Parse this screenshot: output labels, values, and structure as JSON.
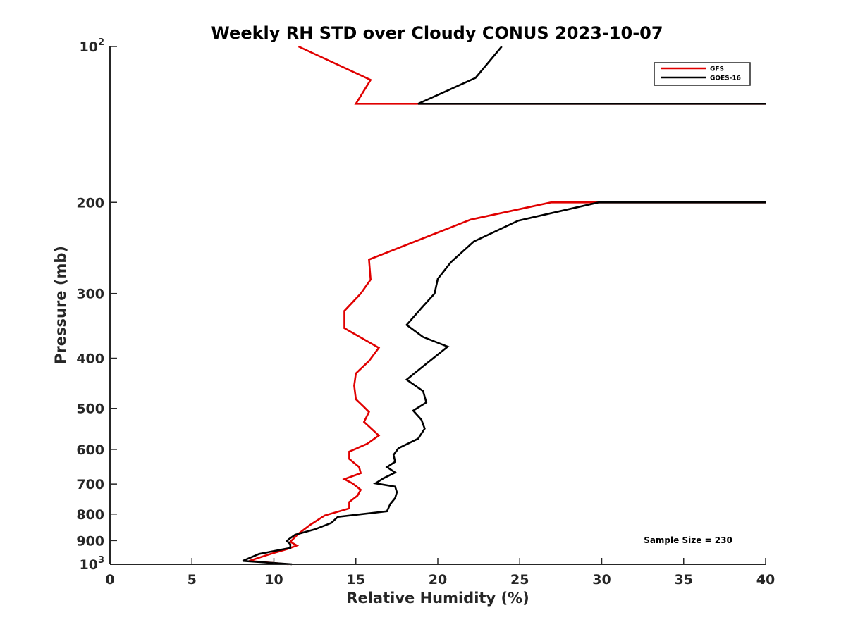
{
  "chart_data": {
    "type": "line",
    "title": "Weekly RH STD over Cloudy CONUS 2023-10-07",
    "xlabel": "Relative Humidity (%)",
    "ylabel": "Pressure (mb)",
    "xlim": [
      0,
      40
    ],
    "ylim": [
      100,
      1000
    ],
    "y_scale": "log",
    "y_reversed": true,
    "x_ticks": [
      0,
      5,
      10,
      15,
      20,
      25,
      30,
      35,
      40
    ],
    "y_ticks": [
      {
        "value": 100,
        "base": "10",
        "exp": "2"
      },
      {
        "value": 200,
        "label": "200"
      },
      {
        "value": 300,
        "label": "300"
      },
      {
        "value": 400,
        "label": "400"
      },
      {
        "value": 500,
        "label": "500"
      },
      {
        "value": 600,
        "label": "600"
      },
      {
        "value": 700,
        "label": "700"
      },
      {
        "value": 800,
        "label": "800"
      },
      {
        "value": 900,
        "label": "900"
      },
      {
        "value": 1000,
        "base": "10",
        "exp": "3"
      }
    ],
    "grid": false,
    "legend_position": "top-right",
    "annotation": "Sample Size = 230",
    "series": [
      {
        "name": "GFS",
        "color": "#e00000",
        "segments": [
          [
            [
              11.5,
              100
            ],
            [
              15.9,
              116
            ],
            [
              15.0,
              129
            ],
            [
              40,
              129
            ]
          ],
          [
            [
              40,
              200
            ],
            [
              26.9,
              200
            ],
            [
              22.0,
              216
            ],
            [
              15.8,
              258
            ],
            [
              15.9,
              282
            ],
            [
              15.3,
              300
            ],
            [
              14.3,
              324
            ],
            [
              14.3,
              350
            ],
            [
              16.4,
              382
            ],
            [
              15.8,
              405
            ],
            [
              15.0,
              428
            ],
            [
              14.9,
              452
            ],
            [
              15.0,
              480
            ],
            [
              15.5,
              497
            ],
            [
              15.8,
              508
            ],
            [
              15.5,
              531
            ],
            [
              16.4,
              564
            ],
            [
              15.7,
              585
            ],
            [
              14.6,
              606
            ],
            [
              14.6,
              626
            ],
            [
              15.2,
              649
            ],
            [
              15.3,
              667
            ],
            [
              14.3,
              685
            ],
            [
              14.8,
              698
            ],
            [
              15.3,
              718
            ],
            [
              15.1,
              737
            ],
            [
              14.6,
              758
            ],
            [
              14.6,
              780
            ],
            [
              13.1,
              805
            ],
            [
              12.2,
              840
            ],
            [
              11.5,
              873
            ],
            [
              11.0,
              905
            ],
            [
              11.4,
              920
            ],
            [
              10.8,
              935
            ],
            [
              9.8,
              955
            ],
            [
              8.5,
              985
            ],
            [
              10.9,
              1000
            ]
          ]
        ]
      },
      {
        "name": "GOES-16",
        "color": "#000000",
        "segments": [
          [
            [
              23.9,
              100
            ],
            [
              22.3,
              115
            ],
            [
              18.8,
              129
            ],
            [
              40,
              129
            ]
          ],
          [
            [
              40,
              200
            ],
            [
              29.8,
              200
            ],
            [
              24.9,
              217
            ],
            [
              22.2,
              238
            ],
            [
              20.8,
              261
            ],
            [
              20.0,
              281
            ],
            [
              19.8,
              300
            ],
            [
              19.0,
              320
            ],
            [
              18.1,
              345
            ],
            [
              19.1,
              364
            ],
            [
              20.6,
              380
            ],
            [
              19.3,
              410
            ],
            [
              18.1,
              440
            ],
            [
              19.1,
              463
            ],
            [
              19.3,
              487
            ],
            [
              18.5,
              505
            ],
            [
              19.0,
              526
            ],
            [
              19.2,
              547
            ],
            [
              18.8,
              572
            ],
            [
              17.6,
              597
            ],
            [
              17.3,
              615
            ],
            [
              17.4,
              634
            ],
            [
              16.9,
              649
            ],
            [
              17.4,
              665
            ],
            [
              16.7,
              682
            ],
            [
              16.2,
              698
            ],
            [
              17.4,
              708
            ],
            [
              17.5,
              726
            ],
            [
              17.4,
              745
            ],
            [
              17.1,
              765
            ],
            [
              16.9,
              790
            ],
            [
              13.9,
              810
            ],
            [
              13.5,
              832
            ],
            [
              12.5,
              856
            ],
            [
              11.3,
              877
            ],
            [
              10.9,
              895
            ],
            [
              10.8,
              902
            ],
            [
              11.0,
              915
            ],
            [
              11.0,
              930
            ],
            [
              9.1,
              955
            ],
            [
              8.1,
              985
            ],
            [
              11.1,
              1000
            ]
          ]
        ]
      }
    ]
  }
}
